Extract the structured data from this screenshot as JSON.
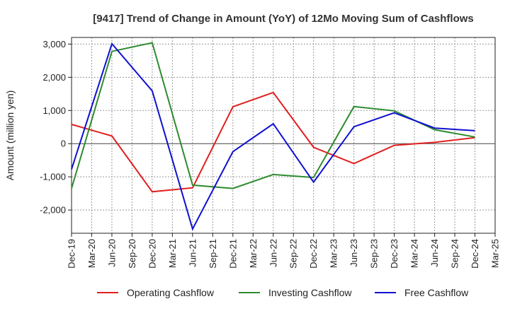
{
  "chart_data": {
    "type": "line",
    "title": "[9417]  Trend of Change in Amount (YoY) of 12Mo Moving Sum of Cashflows",
    "xlabel": "",
    "ylabel": "Amount (million yen)",
    "ylim": [
      -2700,
      3200
    ],
    "yticks": [
      -2000,
      -1000,
      0,
      1000,
      2000,
      3000
    ],
    "ytick_labels": [
      "-2,000",
      "-1,000",
      "0",
      "1,000",
      "2,000",
      "3,000"
    ],
    "categories": [
      "Dec-19",
      "Mar-20",
      "Jun-20",
      "Sep-20",
      "Dec-20",
      "Mar-21",
      "Jun-21",
      "Sep-21",
      "Dec-21",
      "Mar-22",
      "Jun-22",
      "Sep-22",
      "Dec-22",
      "Mar-23",
      "Jun-23",
      "Sep-23",
      "Dec-23",
      "Mar-24",
      "Jun-24",
      "Sep-24",
      "Dec-24",
      "Mar-25"
    ],
    "series": [
      {
        "name": "Operating Cashflow",
        "color": "#e02020",
        "values": [
          580,
          null,
          230,
          null,
          -1450,
          null,
          -1330,
          null,
          1110,
          null,
          1540,
          null,
          -110,
          null,
          -600,
          null,
          -50,
          null,
          40,
          null,
          180,
          null
        ]
      },
      {
        "name": "Investing Cashflow",
        "color": "#2e8b2e",
        "values": [
          -1350,
          null,
          2780,
          null,
          3040,
          null,
          -1250,
          null,
          -1350,
          null,
          -930,
          null,
          -1020,
          null,
          1120,
          null,
          990,
          null,
          420,
          null,
          200,
          null
        ]
      },
      {
        "name": "Free Cashflow",
        "color": "#1010d0",
        "values": [
          -770,
          null,
          3010,
          null,
          1590,
          null,
          -2570,
          null,
          -240,
          null,
          600,
          null,
          -1160,
          null,
          510,
          null,
          930,
          null,
          470,
          null,
          390,
          null
        ]
      }
    ],
    "grid": true,
    "legend_position": "bottom"
  }
}
